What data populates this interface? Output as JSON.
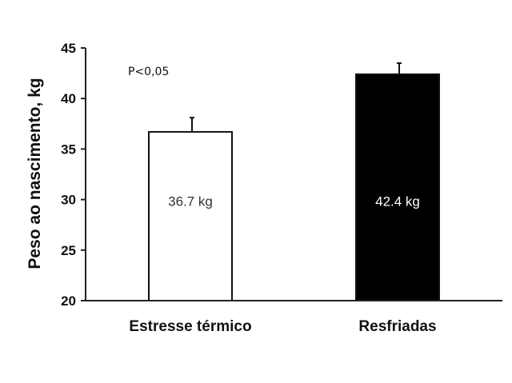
{
  "chart_data": {
    "type": "bar",
    "categories": [
      "Estresse térmico",
      "Resfriadas"
    ],
    "values": [
      36.7,
      42.4
    ],
    "errors": [
      1.4,
      1.1
    ],
    "data_labels": [
      "36.7 kg",
      "42.4 kg"
    ],
    "bar_fill": [
      "#ffffff",
      "#000000"
    ],
    "label_colors": [
      "#333333",
      "#ffffff"
    ],
    "title": "",
    "xlabel": "",
    "ylabel": "Peso ao nascimento, kg",
    "ylim": [
      20,
      45
    ],
    "yticks": [
      20,
      25,
      30,
      35,
      40,
      45
    ],
    "annotation": "P<0,05",
    "grid": false,
    "legend": "none"
  }
}
